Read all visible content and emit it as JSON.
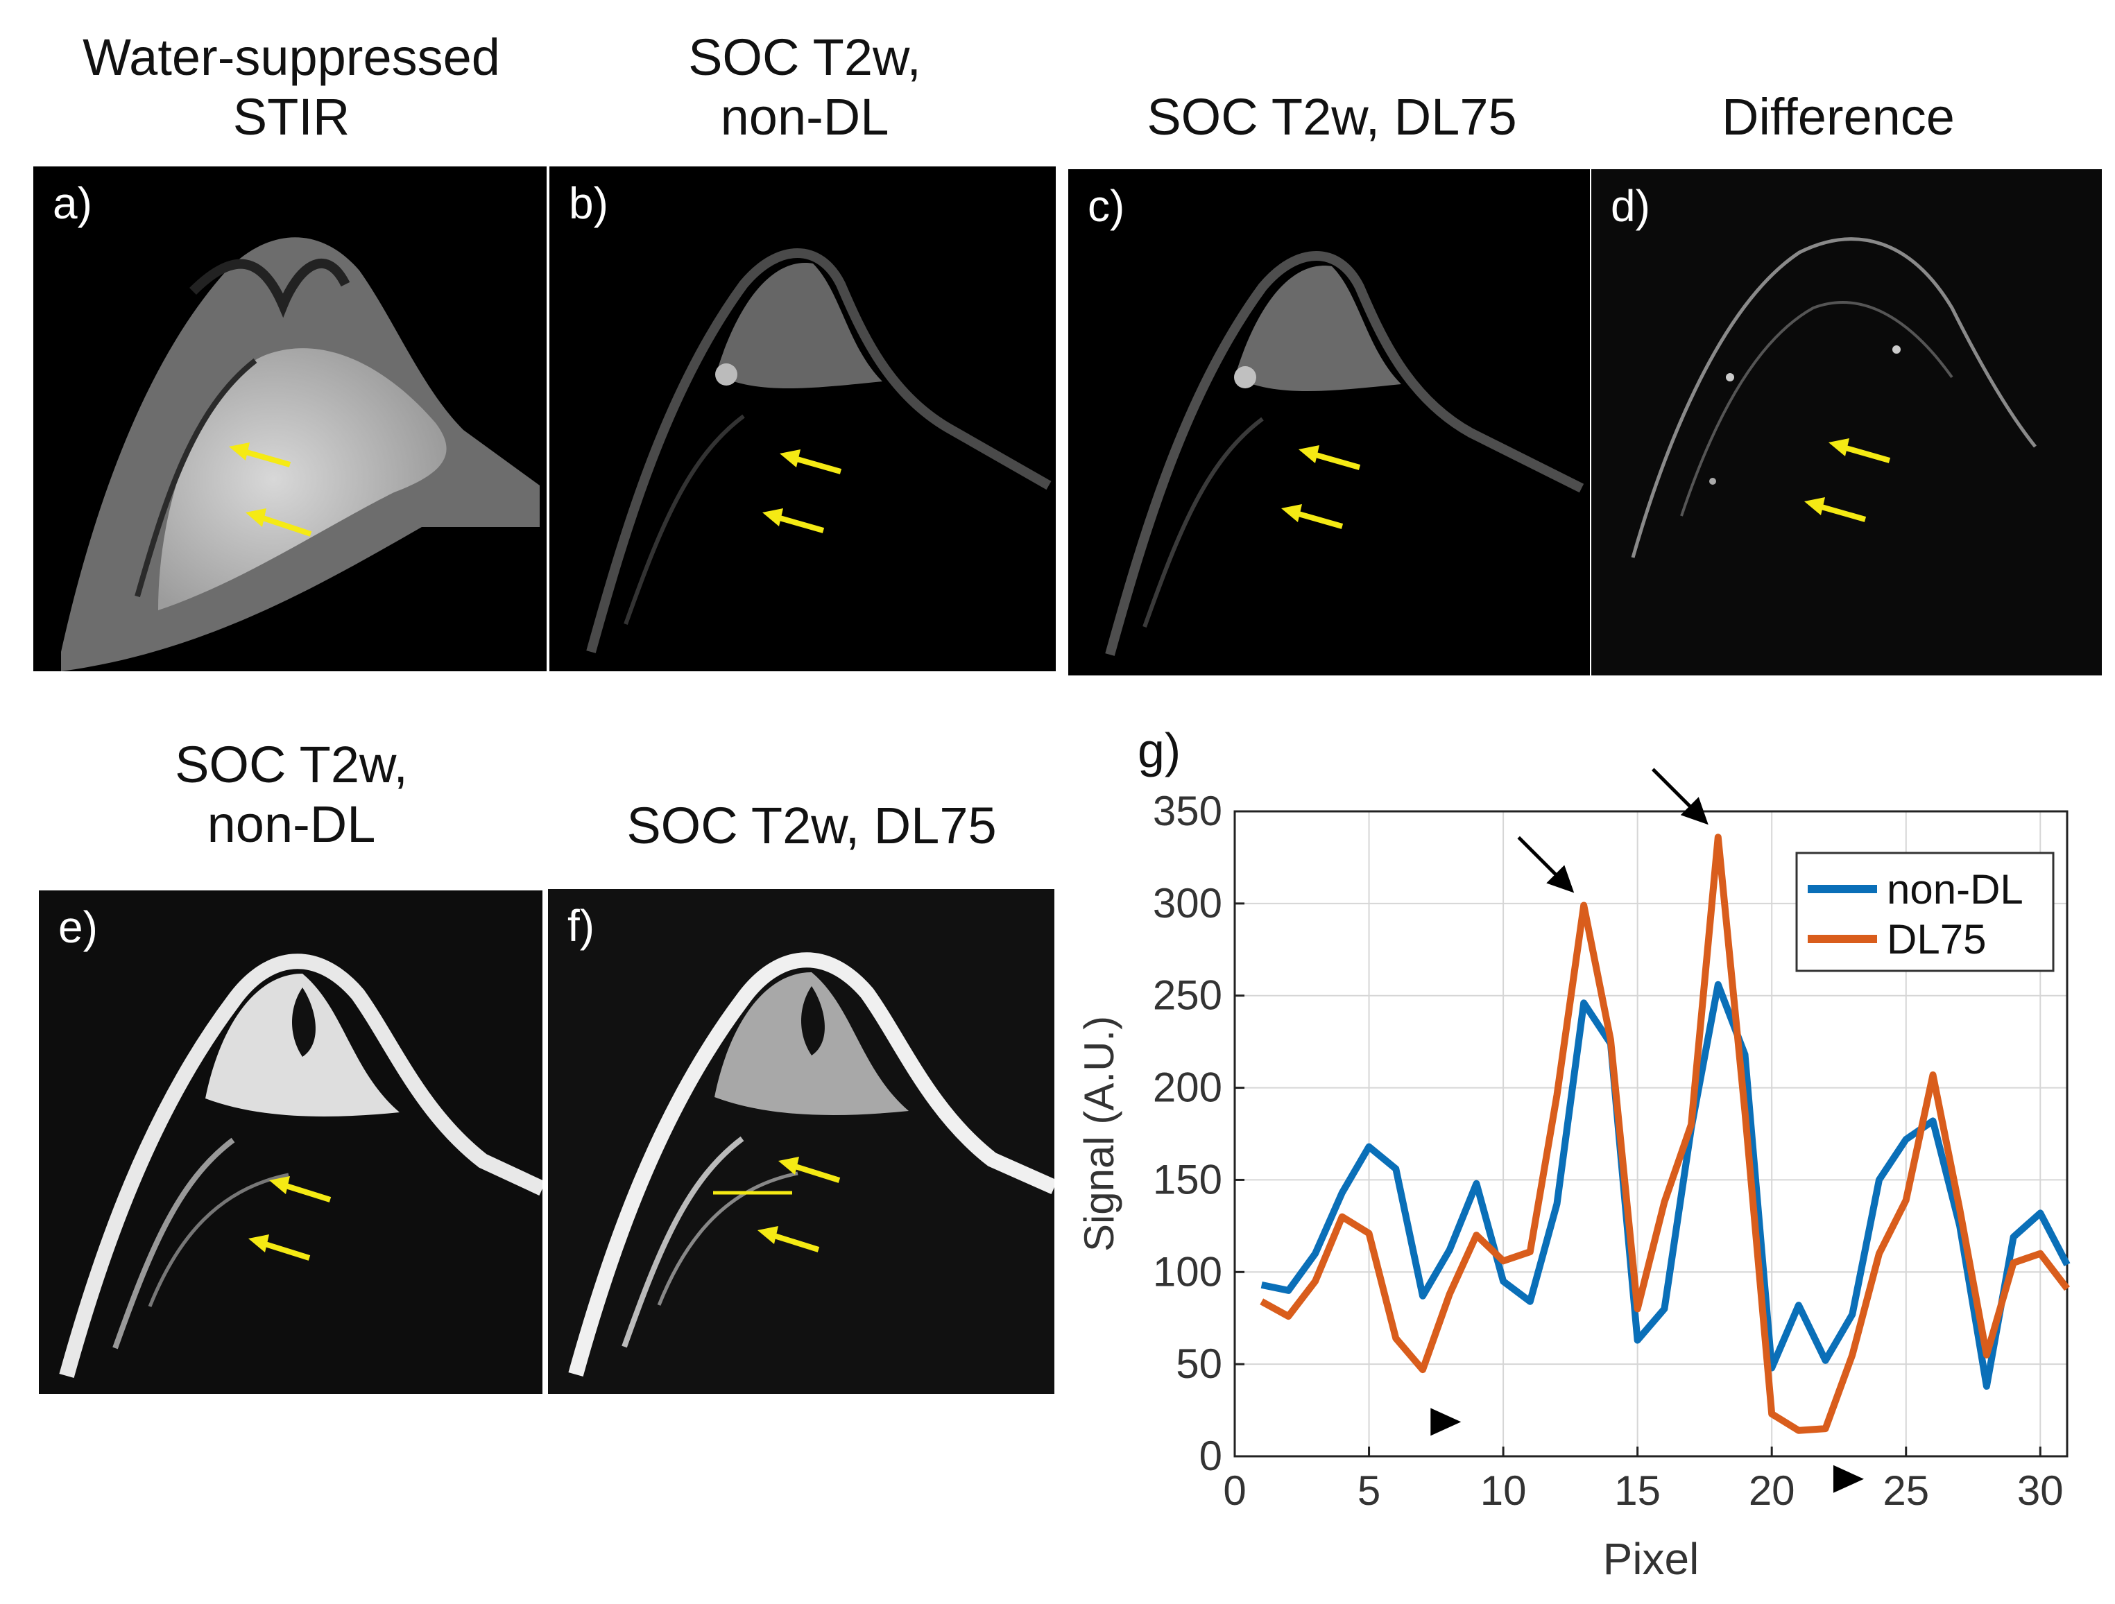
{
  "figure": {
    "titles": {
      "a": [
        "Water-suppressed",
        "STIR"
      ],
      "b": [
        "SOC T2w,",
        "non-DL"
      ],
      "c": [
        "SOC T2w, DL75"
      ],
      "d": [
        "Difference"
      ],
      "e": [
        "SOC T2w,",
        "non-DL"
      ],
      "f": [
        "SOC T2w, DL75"
      ]
    },
    "panel_labels": {
      "a": "a)",
      "b": "b)",
      "c": "c)",
      "d": "d)",
      "e": "e)",
      "f": "f)",
      "g": "g)"
    },
    "arrow_color": "#f5ea14"
  },
  "chart_data": {
    "type": "line",
    "panel_label": "g)",
    "xlabel": "Pixel",
    "ylabel": "Signal (A.U.)",
    "xlim": [
      0,
      31
    ],
    "ylim": [
      0,
      350
    ],
    "xticks": [
      0,
      5,
      10,
      15,
      20,
      25,
      30
    ],
    "yticks": [
      0,
      50,
      100,
      150,
      200,
      250,
      300,
      350
    ],
    "grid": true,
    "legend": "top-right",
    "x": [
      1,
      2,
      3,
      4,
      5,
      6,
      7,
      8,
      9,
      10,
      11,
      12,
      13,
      14,
      15,
      16,
      17,
      18,
      19,
      20,
      21,
      22,
      23,
      24,
      25,
      26,
      27,
      28,
      29,
      30,
      31
    ],
    "series": [
      {
        "name": "non-DL",
        "color": "#0a6fb8",
        "values": [
          93,
          90,
          110,
          143,
          168,
          156,
          87,
          112,
          148,
          95,
          84,
          137,
          246,
          224,
          63,
          80,
          178,
          256,
          218,
          48,
          82,
          52,
          77,
          150,
          172,
          182,
          125,
          38,
          119,
          132,
          104
        ]
      },
      {
        "name": "DL75",
        "color": "#d95d1c",
        "values": [
          84,
          76,
          95,
          130,
          121,
          64,
          47,
          88,
          120,
          106,
          111,
          196,
          299,
          226,
          80,
          138,
          180,
          336,
          187,
          23,
          14,
          15,
          55,
          110,
          139,
          207,
          134,
          55,
          105,
          110,
          91
        ]
      }
    ],
    "annotations": [
      {
        "type": "arrow",
        "color": "#000000",
        "x": 13,
        "y": 299
      },
      {
        "type": "arrow",
        "color": "#000000",
        "x": 18,
        "y": 336
      },
      {
        "type": "arrowhead",
        "color": "#000000",
        "x": 7.5,
        "y": 45
      },
      {
        "type": "arrowhead",
        "color": "#000000",
        "x": 22.5,
        "y": 14
      }
    ]
  }
}
